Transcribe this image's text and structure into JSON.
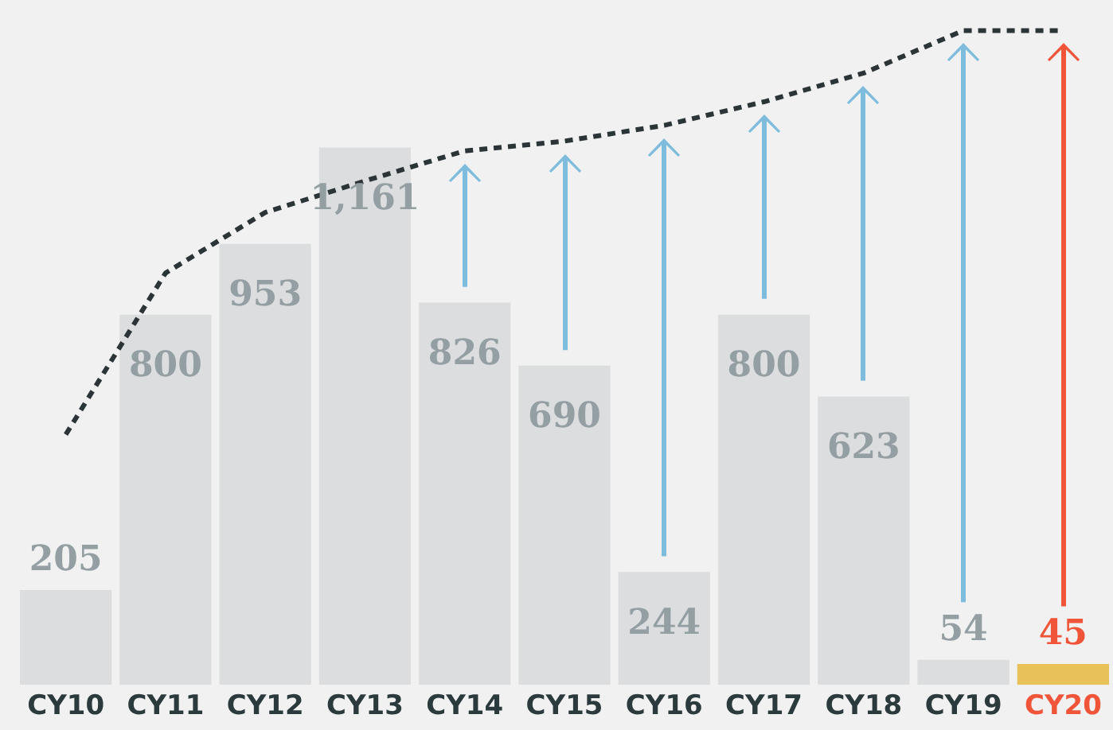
{
  "chart_data": {
    "type": "bar",
    "categories": [
      "CY10",
      "CY11",
      "CY12",
      "CY13",
      "CY14",
      "CY15",
      "CY16",
      "CY17",
      "CY18",
      "CY19",
      "CY20"
    ],
    "series": [
      {
        "colors": [
          "#dcddde",
          "#dcddde",
          "#dcddde",
          "#dcddde",
          "#dcddde",
          "#dcddde",
          "#dcddde",
          "#dcddde",
          "#dcddde",
          "#dcddde",
          "#e8c158"
        ],
        "values": [
          205,
          800,
          953,
          1161,
          826,
          690,
          244,
          800,
          623,
          54,
          45
        ],
        "value_labels": [
          "205",
          "800",
          "953",
          "1,161",
          "826",
          "690",
          "244",
          "800",
          "623",
          "54",
          "45"
        ]
      },
      {
        "type": "line",
        "color": "#2b3437",
        "line_style": "dashed",
        "marker": "none",
        "values": [
          541,
          890,
          1021,
          1089,
          1154,
          1175,
          1209,
          1260,
          1322,
          1414,
          1414
        ]
      }
    ],
    "ylim": [
      0,
      1480
    ],
    "tick_labels": "x",
    "grid": false,
    "legend": false
  }
}
